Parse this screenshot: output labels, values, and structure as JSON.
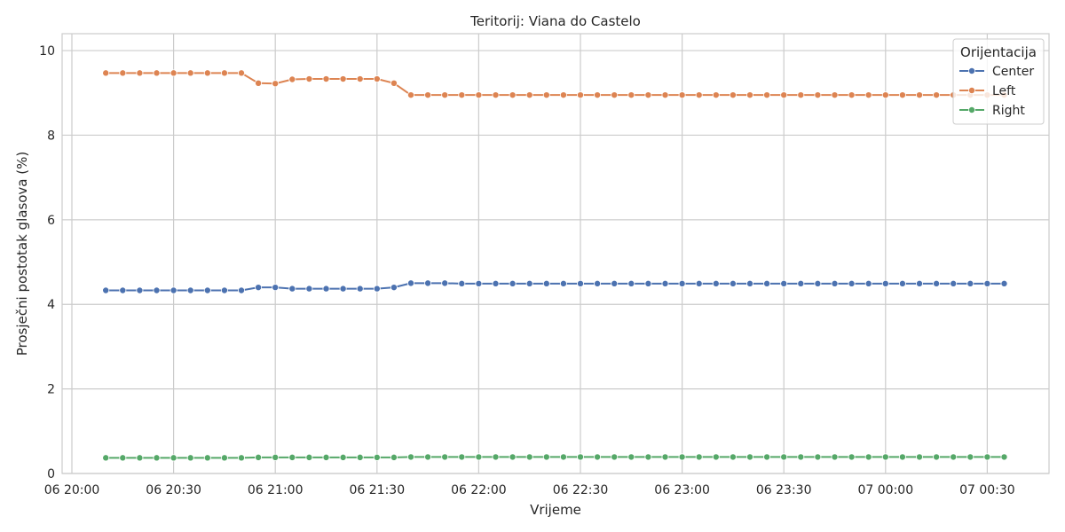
{
  "chart_data": {
    "type": "line",
    "title": "Teritorij: Viana do Castelo",
    "xlabel": "Vrijeme",
    "ylabel": "Prosječni postotak glasova (%)",
    "x_start": "06 20:10",
    "x_step_minutes": 5,
    "xlim": [
      "06 20:00",
      "06 00:40"
    ],
    "x_ticks": [
      {
        "label": "06 20:00",
        "minute": 0
      },
      {
        "label": "06 20:30",
        "minute": 30
      },
      {
        "label": "06 21:00",
        "minute": 60
      },
      {
        "label": "06 21:30",
        "minute": 90
      },
      {
        "label": "06 22:00",
        "minute": 120
      },
      {
        "label": "06 22:30",
        "minute": 150
      },
      {
        "label": "06 23:00",
        "minute": 180
      },
      {
        "label": "06 23:30",
        "minute": 210
      },
      {
        "label": "07 00:00",
        "minute": 240
      },
      {
        "label": "07 00:30",
        "minute": 270
      }
    ],
    "ylim": [
      0,
      10.4
    ],
    "y_ticks": [
      "0",
      "2",
      "4",
      "6",
      "8",
      "10"
    ],
    "grid": true,
    "legend": {
      "title": "Orijentacija",
      "placement": "top-right"
    },
    "series": [
      {
        "name": "Center",
        "color": "#4c72b0",
        "values": [
          4.33,
          4.33,
          4.33,
          4.33,
          4.33,
          4.33,
          4.33,
          4.33,
          4.33,
          4.4,
          4.4,
          4.37,
          4.37,
          4.37,
          4.37,
          4.37,
          4.37,
          4.4,
          4.5,
          4.5,
          4.5,
          4.49,
          4.49,
          4.49,
          4.49,
          4.49,
          4.49,
          4.49,
          4.49,
          4.49,
          4.49,
          4.49,
          4.49,
          4.49,
          4.49,
          4.49,
          4.49,
          4.49,
          4.49,
          4.49,
          4.49,
          4.49,
          4.49,
          4.49,
          4.49,
          4.49,
          4.49,
          4.49,
          4.49,
          4.49,
          4.49,
          4.49,
          4.49,
          4.49
        ]
      },
      {
        "name": "Left",
        "color": "#dd8452",
        "values": [
          9.47,
          9.47,
          9.47,
          9.47,
          9.47,
          9.47,
          9.47,
          9.47,
          9.47,
          9.23,
          9.22,
          9.32,
          9.33,
          9.33,
          9.33,
          9.33,
          9.33,
          9.23,
          8.95,
          8.95,
          8.95,
          8.95,
          8.95,
          8.95,
          8.95,
          8.95,
          8.95,
          8.95,
          8.95,
          8.95,
          8.95,
          8.95,
          8.95,
          8.95,
          8.95,
          8.95,
          8.95,
          8.95,
          8.95,
          8.95,
          8.95,
          8.95,
          8.95,
          8.95,
          8.95,
          8.95,
          8.95,
          8.95,
          8.95,
          8.95,
          8.95,
          8.95,
          8.95,
          8.95
        ]
      },
      {
        "name": "Right",
        "color": "#55a868",
        "values": [
          0.37,
          0.37,
          0.37,
          0.37,
          0.37,
          0.37,
          0.37,
          0.37,
          0.37,
          0.38,
          0.38,
          0.38,
          0.38,
          0.38,
          0.38,
          0.38,
          0.38,
          0.38,
          0.39,
          0.39,
          0.39,
          0.39,
          0.39,
          0.39,
          0.39,
          0.39,
          0.39,
          0.39,
          0.39,
          0.39,
          0.39,
          0.39,
          0.39,
          0.39,
          0.39,
          0.39,
          0.39,
          0.39,
          0.39,
          0.39,
          0.39,
          0.39,
          0.39,
          0.39,
          0.39,
          0.39,
          0.39,
          0.39,
          0.39,
          0.39,
          0.39,
          0.39,
          0.39,
          0.39
        ]
      }
    ]
  },
  "colors": {
    "grid": "#cccccc",
    "frame": "#cccccc",
    "text": "#262626"
  }
}
